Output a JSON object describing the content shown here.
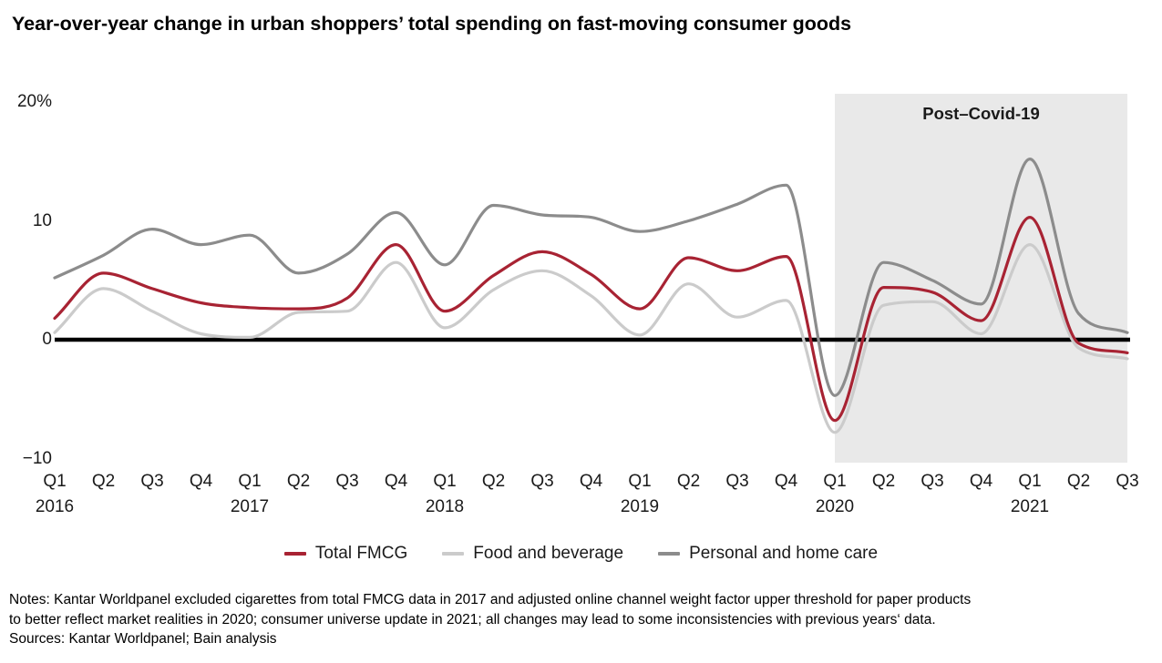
{
  "title": "Year-over-year change in urban shoppers’ total spending on fast-moving consumer goods",
  "chart_data": {
    "type": "line",
    "title": "Year-over-year change in urban shoppers’ total spending on fast-moving consumer goods",
    "unit": "percent",
    "ylim": [
      -10,
      20
    ],
    "grid": false,
    "legend_position": "bottom",
    "y_ticks": [
      {
        "label": "20%",
        "value": 20
      },
      {
        "label": "10",
        "value": 10
      },
      {
        "label": "0",
        "value": 0
      },
      {
        "label": "−10",
        "value": -10
      }
    ],
    "x_tick_quarters": [
      "Q1",
      "Q2",
      "Q3",
      "Q4",
      "Q1",
      "Q2",
      "Q3",
      "Q4",
      "Q1",
      "Q2",
      "Q3",
      "Q4",
      "Q1",
      "Q2",
      "Q3",
      "Q4",
      "Q1",
      "Q2",
      "Q3",
      "Q4",
      "Q1",
      "Q2",
      "Q3"
    ],
    "year_labels": [
      {
        "index": 0,
        "label": "2016"
      },
      {
        "index": 4,
        "label": "2017"
      },
      {
        "index": 8,
        "label": "2018"
      },
      {
        "index": 12,
        "label": "2019"
      },
      {
        "index": 16,
        "label": "2020"
      },
      {
        "index": 20,
        "label": "2021"
      }
    ],
    "categories": [
      "2016 Q1",
      "2016 Q2",
      "2016 Q3",
      "2016 Q4",
      "2017 Q1",
      "2017 Q2",
      "2017 Q3",
      "2017 Q4",
      "2018 Q1",
      "2018 Q2",
      "2018 Q3",
      "2018 Q4",
      "2019 Q1",
      "2019 Q2",
      "2019 Q3",
      "2019 Q4",
      "2020 Q1",
      "2020 Q2",
      "2020 Q3",
      "2020 Q4",
      "2021 Q1",
      "2021 Q2",
      "2021 Q3"
    ],
    "series": [
      {
        "name": "Total FMCG",
        "color": "#a82333",
        "values": [
          1.8,
          5.6,
          4.3,
          3.1,
          2.7,
          2.6,
          3.5,
          8.0,
          2.4,
          5.4,
          7.4,
          5.5,
          2.6,
          6.9,
          5.8,
          7.0,
          -6.8,
          4.4,
          4.0,
          1.6,
          10.3,
          -0.3,
          -1.1
        ]
      },
      {
        "name": "Food and beverage",
        "color": "#cbcbcb",
        "values": [
          0.6,
          4.3,
          2.4,
          0.5,
          0.2,
          2.3,
          2.4,
          6.5,
          1.0,
          4.2,
          5.8,
          3.7,
          0.4,
          4.7,
          1.9,
          3.3,
          -7.8,
          2.9,
          3.2,
          0.5,
          8.0,
          -0.7,
          -1.6
        ]
      },
      {
        "name": "Personal and home care",
        "color": "#8c8c8c",
        "values": [
          5.2,
          7.1,
          9.3,
          8.0,
          8.8,
          5.6,
          7.2,
          10.7,
          6.3,
          11.3,
          10.5,
          10.3,
          9.1,
          10.0,
          11.4,
          13.0,
          -4.7,
          6.5,
          5.0,
          3.0,
          15.2,
          2.2,
          0.6
        ]
      }
    ],
    "shaded_region": {
      "label": "Post–Covid-19",
      "from": "2020 Q1",
      "to": "2021 Q3",
      "color": "#e9e9e9"
    },
    "zero_line_color": "#000000"
  },
  "notes": [
    "Notes: Kantar Worldpanel excluded cigarettes from total FMCG data in 2017 and adjusted online channel weight factor upper threshold for paper products",
    "to better reflect market realities in 2020; consumer universe update in 2021; all changes may lead to some inconsistencies with previous years‘ data."
  ],
  "sources": "Sources: Kantar Worldpanel; Bain analysis"
}
